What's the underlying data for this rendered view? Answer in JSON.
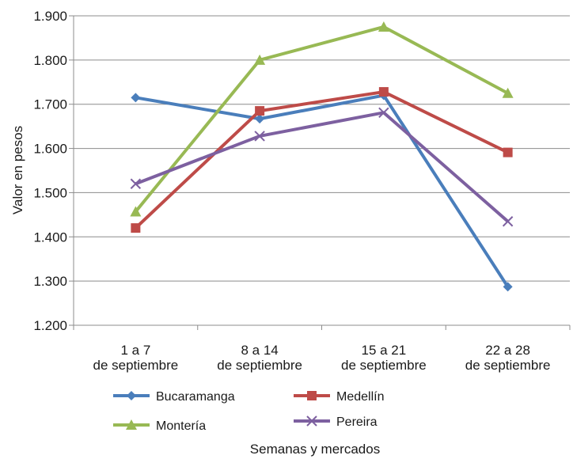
{
  "chart_data": {
    "type": "line",
    "categories": [
      [
        "1 a 7",
        "de septiembre"
      ],
      [
        "8 a 14",
        "de septiembre"
      ],
      [
        "15 a 21",
        "de septiembre"
      ],
      [
        "22 a 28",
        "de septiembre"
      ]
    ],
    "ylabel": "Valor en pesos",
    "xlabel": "Semanas y mercados",
    "ylim": [
      1200,
      1900
    ],
    "yticks": [
      1200,
      1300,
      1400,
      1500,
      1600,
      1700,
      1800,
      1900
    ],
    "ytick_labels": [
      "1.200",
      "1.300",
      "1.400",
      "1.500",
      "1.600",
      "1.700",
      "1.800",
      "1.900"
    ],
    "grid": "horizontal",
    "legend_position": "bottom",
    "series": [
      {
        "name": "Bucaramanga",
        "values": [
          1715,
          1667,
          1720,
          1287
        ],
        "color": "#4a7ebb",
        "marker": "diamond"
      },
      {
        "name": "Medellín",
        "values": [
          1420,
          1685,
          1728,
          1591
        ],
        "color": "#be4b48",
        "marker": "square"
      },
      {
        "name": "Montería",
        "values": [
          1457,
          1800,
          1875,
          1725
        ],
        "color": "#98b954",
        "marker": "triangle"
      },
      {
        "name": "Pereira",
        "values": [
          1520,
          1628,
          1681,
          1435
        ],
        "color": "#7d60a0",
        "marker": "x"
      }
    ]
  }
}
